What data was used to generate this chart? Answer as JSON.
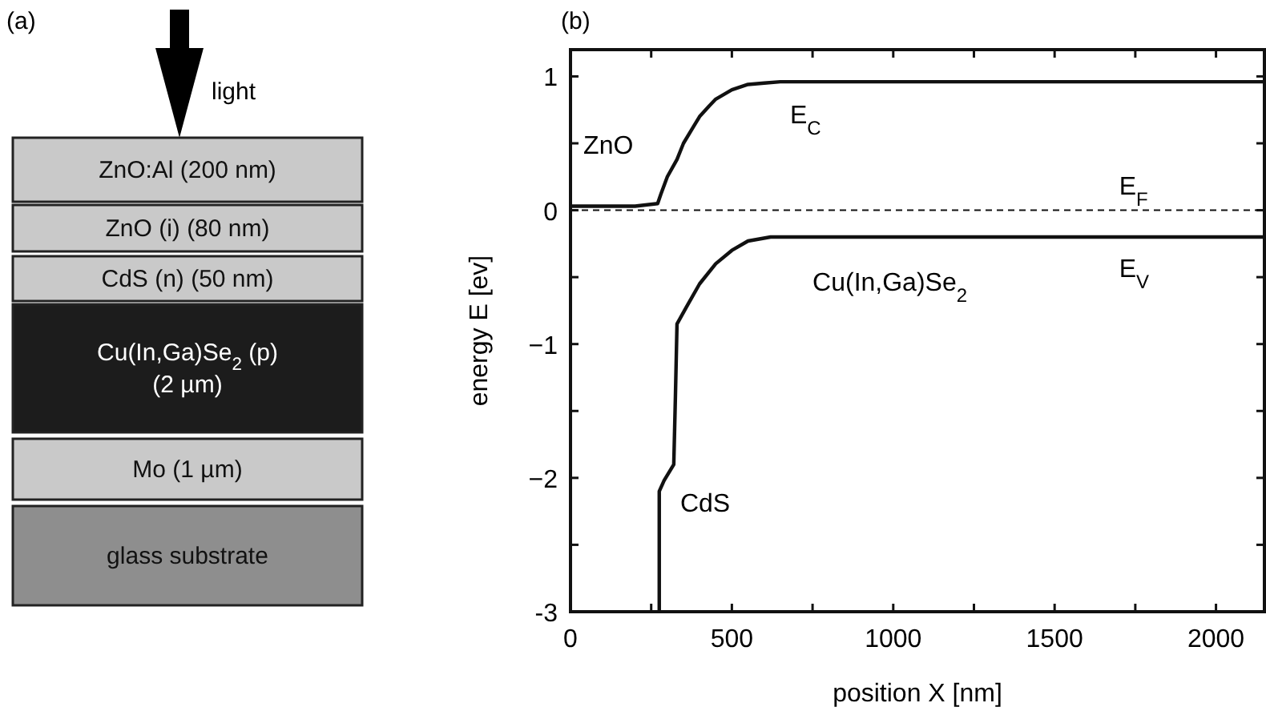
{
  "chart_data": [
    {
      "type": "other",
      "title": "(a)",
      "categories": [
        "ZnO:Al (200 nm)",
        "ZnO (i) (80 nm)",
        "CdS (n) (50 nm)",
        "Cu(In,Ga)Se$_{2}$ (p)\n(2 µm)",
        "Mo (1 µm)",
        "glass substrate"
      ],
      "colors": [
        "#c9c9c9",
        "#c9c9c9",
        "#c9c9c9",
        "#1c1c1c",
        "#c9c9c9",
        "#8e8e8e"
      ],
      "annotations": [
        "light"
      ]
    },
    {
      "type": "line",
      "title": "(b)",
      "xlabel": "position X [nm]",
      "ylabel": "energy E [ev]",
      "xlim": [
        0,
        2150
      ],
      "ylim": [
        -3,
        1.2
      ],
      "xticks": [
        0,
        {
          "value": 250,
          "label": null
        },
        500,
        {
          "value": 750,
          "label": null
        },
        1000,
        {
          "value": 1250,
          "label": null
        },
        1500,
        {
          "value": 1750,
          "label": null
        },
        2000
      ],
      "yticks": [
        -3,
        {
          "value": -2.5,
          "label": null
        },
        {
          "value": -2,
          "label": "−2"
        },
        {
          "value": -1.5,
          "label": null
        },
        {
          "value": -1,
          "label": "−1"
        },
        {
          "value": -0.5,
          "label": null
        },
        0,
        {
          "value": 0.5,
          "label": null
        },
        1
      ],
      "series": [
        {
          "name": "E$_{C}$",
          "color": "#111111",
          "x": [
            0,
            200,
            270,
            280,
            300,
            330,
            350,
            380,
            400,
            430,
            450,
            500,
            550,
            600,
            650,
            2150
          ],
          "values": [
            0.03,
            0.03,
            0.05,
            0.12,
            0.25,
            0.38,
            0.5,
            0.62,
            0.7,
            0.78,
            0.83,
            0.9,
            0.94,
            0.95,
            0.96,
            0.96
          ]
        },
        {
          "name": "E$_{V}$",
          "color": "#111111",
          "x": [
            275,
            275,
            290,
            320,
            325,
            330,
            360,
            400,
            450,
            500,
            550,
            620,
            2150
          ],
          "values": [
            -3,
            -2.1,
            -2.02,
            -1.9,
            -1.4,
            -0.85,
            -0.72,
            -0.55,
            -0.4,
            -0.3,
            -0.23,
            -0.2,
            -0.2
          ]
        }
      ],
      "ref_lines": [
        {
          "axis": "y",
          "value": 0,
          "label": "E$_{F}$",
          "line_style": "dashed",
          "color": "#111111"
        }
      ],
      "annotations": [
        "ZnO",
        "CdS",
        "Cu(In,Ga)Se$_{2}$"
      ]
    }
  ]
}
